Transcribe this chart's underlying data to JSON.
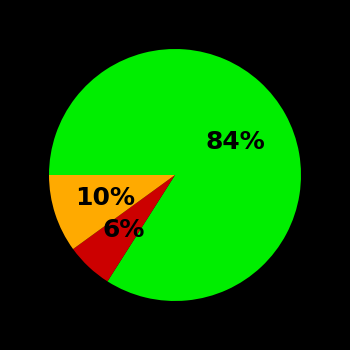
{
  "slices": [
    84,
    6,
    10
  ],
  "labels": [
    "84%",
    "6%",
    "10%"
  ],
  "colors": [
    "#00ee00",
    "#cc0000",
    "#ffaa00"
  ],
  "background_color": "#000000",
  "startangle": 180,
  "counterclock": false,
  "label_fontsize": 18,
  "label_color": "#000000",
  "label_offsets": [
    0.55,
    0.6,
    0.58
  ],
  "figsize": [
    3.5,
    3.5
  ],
  "dpi": 100
}
